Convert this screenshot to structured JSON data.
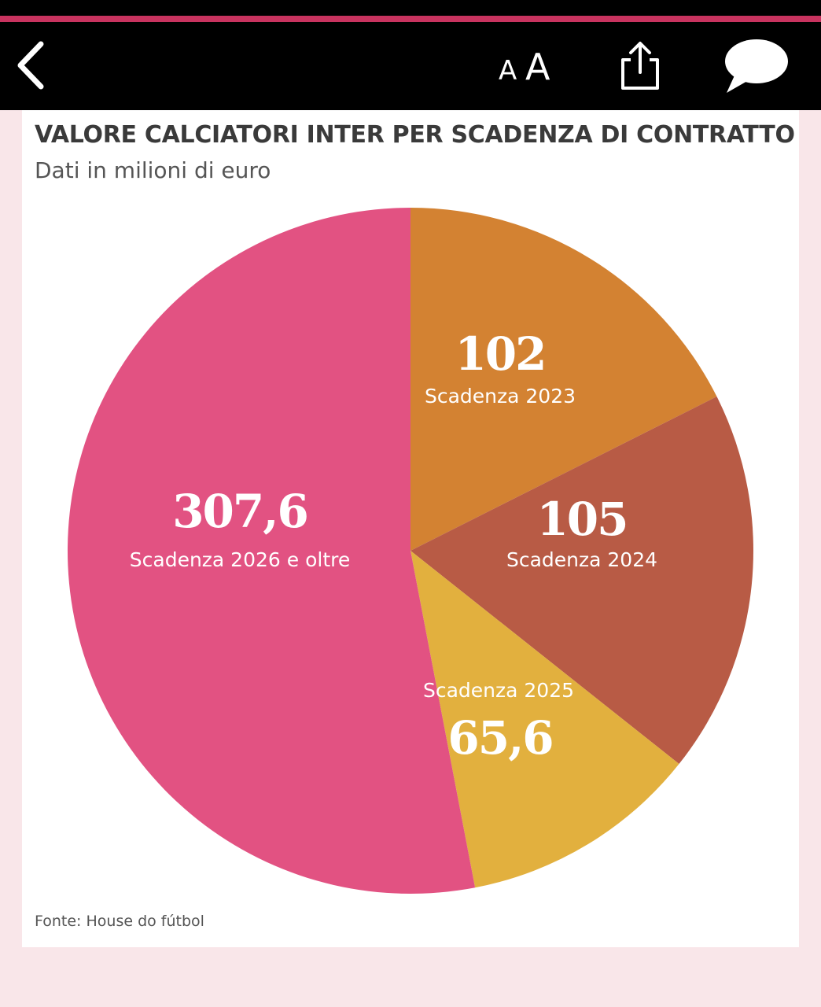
{
  "toolbar": {
    "back_icon": "chevron-left-icon",
    "text_size_small": "A",
    "text_size_large": "A",
    "share_icon": "share-icon",
    "comment_icon": "speech-bubble-icon"
  },
  "colors": {
    "page_background": "#f9e6e9",
    "accent": "#c8335f",
    "toolbar": "#000000"
  },
  "chart_data": {
    "type": "pie",
    "title": "VALORE CALCIATORI INTER PER SCADENZA DI CONTRATTO",
    "subtitle": "Dati in milioni di euro",
    "source": "Fonte: House do fútbol",
    "unit": "milioni di euro",
    "start_angle": "12 o'clock",
    "direction": "clockwise",
    "slices": [
      {
        "label": "Scadenza 2023",
        "value": 102,
        "value_label": "102",
        "color": "#d38232"
      },
      {
        "label": "Scadenza 2024",
        "value": 105,
        "value_label": "105",
        "color": "#b85b45"
      },
      {
        "label": "Scadenza 2025",
        "value": 65.6,
        "value_label": "65,6",
        "color": "#e2b03e"
      },
      {
        "label": "Scadenza 2026 e oltre",
        "value": 307.6,
        "value_label": "307,6",
        "color": "#e25282"
      }
    ]
  }
}
